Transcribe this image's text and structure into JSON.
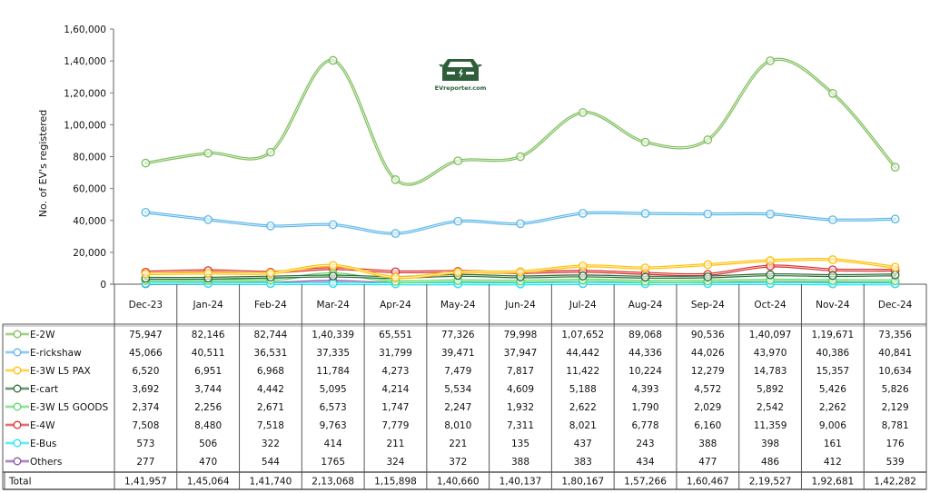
{
  "chart_data": {
    "type": "line",
    "title": "",
    "xlabel": "",
    "ylabel": "No. of EV's registered",
    "ylim": [
      0,
      160000
    ],
    "yticks": [
      0,
      20000,
      40000,
      60000,
      80000,
      100000,
      120000,
      140000,
      160000
    ],
    "ytick_labels": [
      "0",
      "20,000",
      "40,000",
      "60,000",
      "80,000",
      "1,00,000",
      "1,20,000",
      "1,40,000",
      "1,60,000"
    ],
    "grid": false,
    "legend": "data-table-left",
    "watermark": "EVreporter.com",
    "categories": [
      "Dec-23",
      "Jan-24",
      "Feb-24",
      "Mar-24",
      "Apr-24",
      "May-24",
      "Jun-24",
      "Jul-24",
      "Aug-24",
      "Sep-24",
      "Oct-24",
      "Nov-24",
      "Dec-24"
    ],
    "series": [
      {
        "name": "E-2W",
        "color": "#7DBE5A",
        "values": [
          75947,
          82146,
          82744,
          140339,
          65551,
          77326,
          79998,
          107652,
          89068,
          90536,
          140097,
          119671,
          73356
        ],
        "labels": [
          "75,947",
          "82,146",
          "82,744",
          "1,40,339",
          "65,551",
          "77,326",
          "79,998",
          "1,07,652",
          "89,068",
          "90,536",
          "1,40,097",
          "1,19,671",
          "73,356"
        ]
      },
      {
        "name": "E-rickshaw",
        "color": "#5DB7E8",
        "values": [
          45066,
          40511,
          36531,
          37335,
          31799,
          39471,
          37947,
          44442,
          44336,
          44026,
          43970,
          40386,
          40841
        ],
        "labels": [
          "45,066",
          "40,511",
          "36,531",
          "37,335",
          "31,799",
          "39,471",
          "37,947",
          "44,442",
          "44,336",
          "44,026",
          "43,970",
          "40,386",
          "40,841"
        ]
      },
      {
        "name": "E-3W L5 PAX",
        "color": "#FFC000",
        "values": [
          6520,
          6951,
          6968,
          11784,
          4273,
          7479,
          7817,
          11422,
          10224,
          12279,
          14783,
          15357,
          10634
        ],
        "labels": [
          "6,520",
          "6,951",
          "6,968",
          "11,784",
          "4,273",
          "7,479",
          "7,817",
          "11,422",
          "10,224",
          "12,279",
          "14,783",
          "15,357",
          "10,634"
        ]
      },
      {
        "name": "E-cart",
        "color": "#2E6B3A",
        "values": [
          3692,
          3744,
          4442,
          5095,
          4214,
          5534,
          4609,
          5188,
          4393,
          4572,
          5892,
          5426,
          5826
        ],
        "labels": [
          "3,692",
          "3,744",
          "4,442",
          "5,095",
          "4,214",
          "5,534",
          "4,609",
          "5,188",
          "4,393",
          "4,572",
          "5,892",
          "5,426",
          "5,826"
        ]
      },
      {
        "name": "E-3W L5 GOODS",
        "color": "#5DD86A",
        "values": [
          2374,
          2256,
          2671,
          6573,
          1747,
          2247,
          1932,
          2622,
          1790,
          2029,
          2542,
          2262,
          2129
        ],
        "labels": [
          "2,374",
          "2,256",
          "2,671",
          "6,573",
          "1,747",
          "2,247",
          "1,932",
          "2,622",
          "1,790",
          "2,029",
          "2,542",
          "2,262",
          "2,129"
        ]
      },
      {
        "name": "E-4W",
        "color": "#D9302F",
        "values": [
          7508,
          8480,
          7518,
          9763,
          7779,
          8010,
          7311,
          8021,
          6778,
          6160,
          11359,
          9006,
          8781
        ],
        "labels": [
          "7,508",
          "8,480",
          "7,518",
          "9,763",
          "7,779",
          "8,010",
          "7,311",
          "8,021",
          "6,778",
          "6,160",
          "11,359",
          "9,006",
          "8,781"
        ]
      },
      {
        "name": "E-Bus",
        "color": "#22E3F0",
        "values": [
          573,
          506,
          322,
          414,
          211,
          221,
          135,
          437,
          243,
          388,
          398,
          161,
          176
        ],
        "labels": [
          "573",
          "506",
          "322",
          "414",
          "211",
          "221",
          "135",
          "437",
          "243",
          "388",
          "398",
          "161",
          "176"
        ]
      },
      {
        "name": "Others",
        "color": "#8E4FA8",
        "values": [
          277,
          470,
          544,
          1765,
          324,
          372,
          388,
          383,
          434,
          477,
          486,
          412,
          539
        ],
        "labels": [
          "277",
          "470",
          "544",
          "1765",
          "324",
          "372",
          "388",
          "383",
          "434",
          "477",
          "486",
          "412",
          "539"
        ]
      }
    ],
    "total": {
      "name": "Total",
      "values": [
        141957,
        145064,
        141740,
        213068,
        115898,
        140660,
        140137,
        180167,
        157266,
        160467,
        219527,
        192681,
        142282
      ],
      "labels": [
        "1,41,957",
        "1,45,064",
        "1,41,740",
        "2,13,068",
        "1,15,898",
        "1,40,660",
        "1,40,137",
        "1,80,167",
        "1,57,266",
        "1,60,467",
        "2,19,527",
        "1,92,681",
        "1,42,282"
      ]
    }
  }
}
